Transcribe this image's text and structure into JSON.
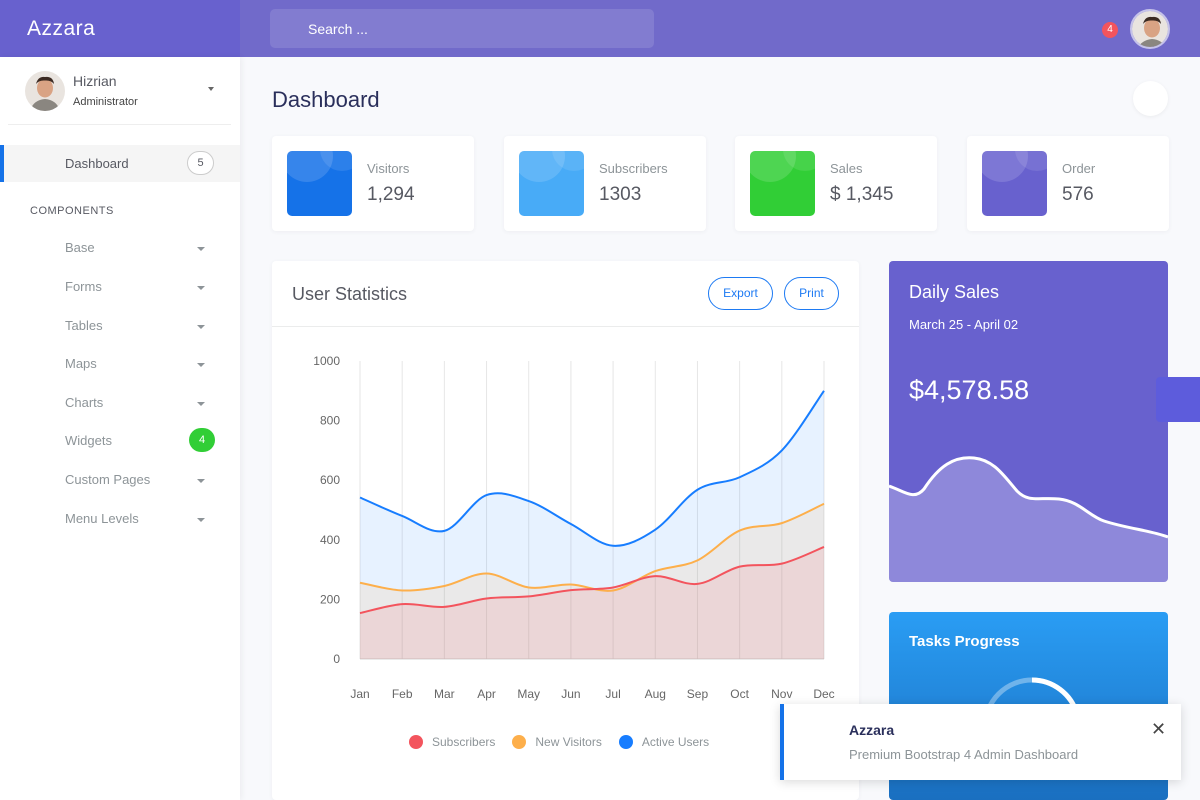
{
  "header": {
    "logo": "Azzara",
    "search_placeholder": "Search ...",
    "notification_count": "4"
  },
  "sidebar": {
    "user": {
      "name": "Hizrian",
      "role": "Administrator"
    },
    "dashboard": {
      "label": "Dashboard",
      "badge": "5"
    },
    "section_title": "COMPONENTS",
    "items": [
      {
        "label": "Base"
      },
      {
        "label": "Forms"
      },
      {
        "label": "Tables"
      },
      {
        "label": "Maps"
      },
      {
        "label": "Charts"
      },
      {
        "label": "Widgets",
        "badge": "4"
      },
      {
        "label": "Custom Pages"
      },
      {
        "label": "Menu Levels"
      }
    ]
  },
  "main": {
    "page_title": "Dashboard",
    "stats": [
      {
        "label": "Visitors",
        "value": "1,294",
        "color": "#1572e8"
      },
      {
        "label": "Subscribers",
        "value": "1303",
        "color": "#48abf7"
      },
      {
        "label": "Sales",
        "value": "$ 1,345",
        "color": "#31ce36"
      },
      {
        "label": "Order",
        "value": "576",
        "color": "#6861ce"
      }
    ],
    "user_statistics": {
      "title": "User Statistics",
      "export_label": "Export",
      "print_label": "Print"
    },
    "daily_sales": {
      "title": "Daily Sales",
      "range": "March 25 - April 02",
      "amount": "$4,578.58"
    },
    "tasks": {
      "title": "Tasks Progress"
    }
  },
  "toast": {
    "title": "Azzara",
    "message": "Premium Bootstrap 4 Admin Dashboard"
  },
  "chart_data": {
    "type": "area",
    "categories": [
      "Jan",
      "Feb",
      "Mar",
      "Apr",
      "May",
      "Jun",
      "Jul",
      "Aug",
      "Sep",
      "Oct",
      "Nov",
      "Dec"
    ],
    "ylim": [
      0,
      1000
    ],
    "yticks": [
      0,
      200,
      400,
      600,
      800,
      1000
    ],
    "series": [
      {
        "name": "Subscribers",
        "color": "#f3545d",
        "values": [
          154,
          184,
          175,
          203,
          210,
          231,
          240,
          278,
          252,
          310,
          320,
          376
        ]
      },
      {
        "name": "New Visitors",
        "color": "#fdaf4b",
        "values": [
          256,
          230,
          245,
          287,
          240,
          250,
          230,
          295,
          331,
          431,
          456,
          521
        ]
      },
      {
        "name": "Active Users",
        "color": "#177dff",
        "values": [
          542,
          480,
          430,
          550,
          530,
          453,
          380,
          434,
          568,
          610,
          700,
          900
        ]
      }
    ],
    "legend_position": "bottom"
  }
}
